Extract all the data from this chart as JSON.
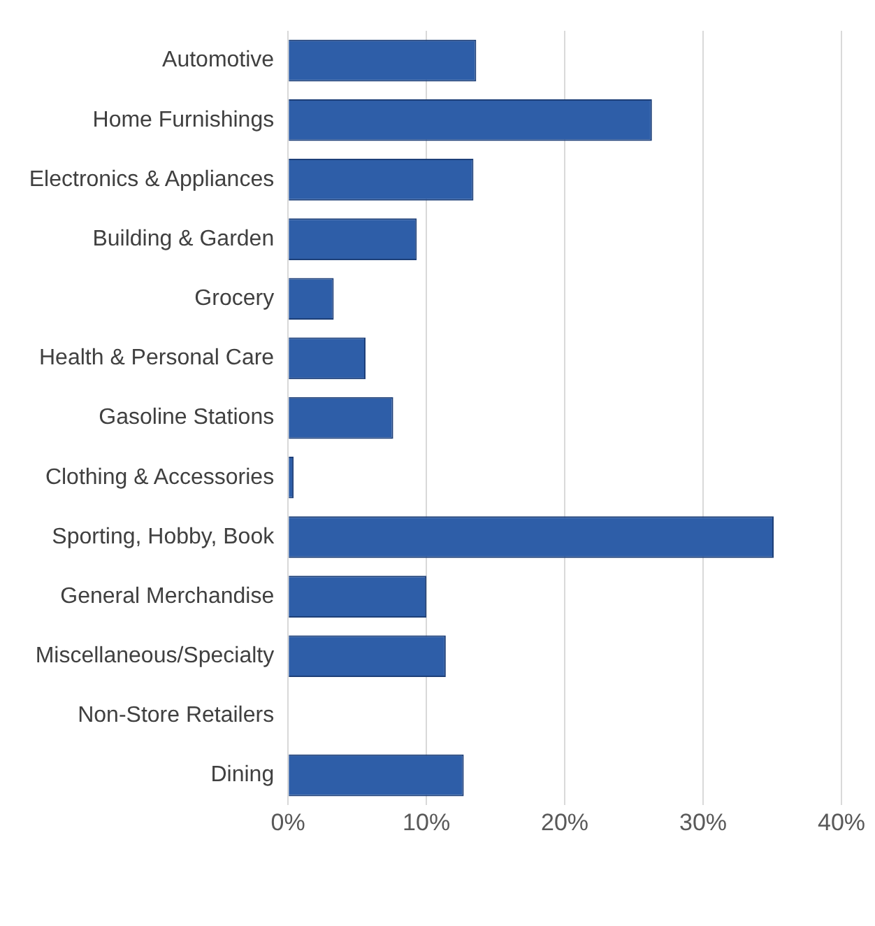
{
  "chart_data": {
    "type": "bar",
    "orientation": "horizontal",
    "categories": [
      "Automotive",
      "Home Furnishings",
      "Electronics & Appliances",
      "Building & Garden",
      "Grocery",
      "Health & Personal Care",
      "Gasoline Stations",
      "Clothing & Accessories",
      "Sporting, Hobby, Book",
      "General Merchandise",
      "Miscellaneous/Specialty",
      "Non-Store Retailers",
      "Dining"
    ],
    "values": [
      13.6,
      26.3,
      13.4,
      9.3,
      3.3,
      5.6,
      7.6,
      0.4,
      35.1,
      10,
      11.4,
      0,
      12.7
    ],
    "color": "#2e5ea8",
    "xlim": [
      0,
      40
    ],
    "xticks": [
      {
        "value": 0,
        "label": "0%"
      },
      {
        "value": 10,
        "label": "10%"
      },
      {
        "value": 20,
        "label": "20%"
      },
      {
        "value": 30,
        "label": "30%"
      },
      {
        "value": 40,
        "label": "40%"
      }
    ],
    "grid": "x",
    "legend": false
  }
}
